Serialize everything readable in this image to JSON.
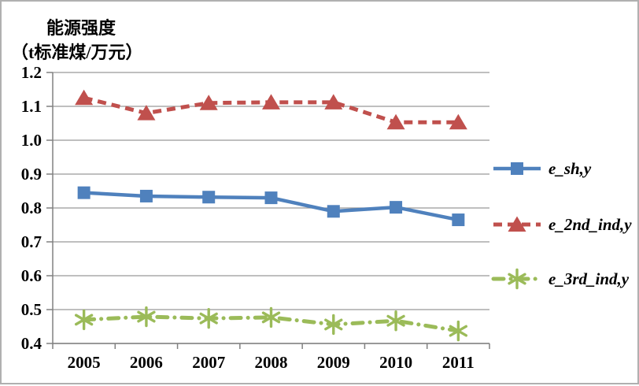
{
  "title": {
    "line1": "能源强度",
    "line2": "（t标准煤/万元）"
  },
  "chart_data": {
    "type": "line",
    "title": "能源强度（t标准煤/万元）",
    "categories": [
      "2005",
      "2006",
      "2007",
      "2008",
      "2009",
      "2010",
      "2011"
    ],
    "series": [
      {
        "name": "e_sh,y",
        "color": "#4f81bd",
        "marker": "square",
        "line_style": "solid",
        "values": [
          0.845,
          0.835,
          0.832,
          0.83,
          0.79,
          0.802,
          0.765
        ]
      },
      {
        "name": "e_2nd_ind,y",
        "color": "#c0504d",
        "marker": "triangle",
        "line_style": "dashed",
        "values": [
          1.125,
          1.08,
          1.11,
          1.112,
          1.112,
          1.053,
          1.053
        ]
      },
      {
        "name": "e_3rd_ind,y",
        "color": "#9bbb59",
        "marker": "asterisk",
        "line_style": "dash-dot",
        "values": [
          0.47,
          0.479,
          0.474,
          0.477,
          0.456,
          0.467,
          0.437
        ]
      }
    ],
    "xlabel": "",
    "ylabel": "",
    "ylim": [
      0.4,
      1.2
    ],
    "y_tick_step": 0.1,
    "y_ticks": [
      "1.2",
      "1.1",
      "1.0",
      "0.9",
      "0.8",
      "0.7",
      "0.6",
      "0.5",
      "0.4"
    ],
    "grid": true,
    "legend_position": "right",
    "colors": {
      "grid_line": "#999999",
      "axis_line": "#808080",
      "tick_text": "#000000",
      "frame_border": "#b0b0b0"
    }
  }
}
